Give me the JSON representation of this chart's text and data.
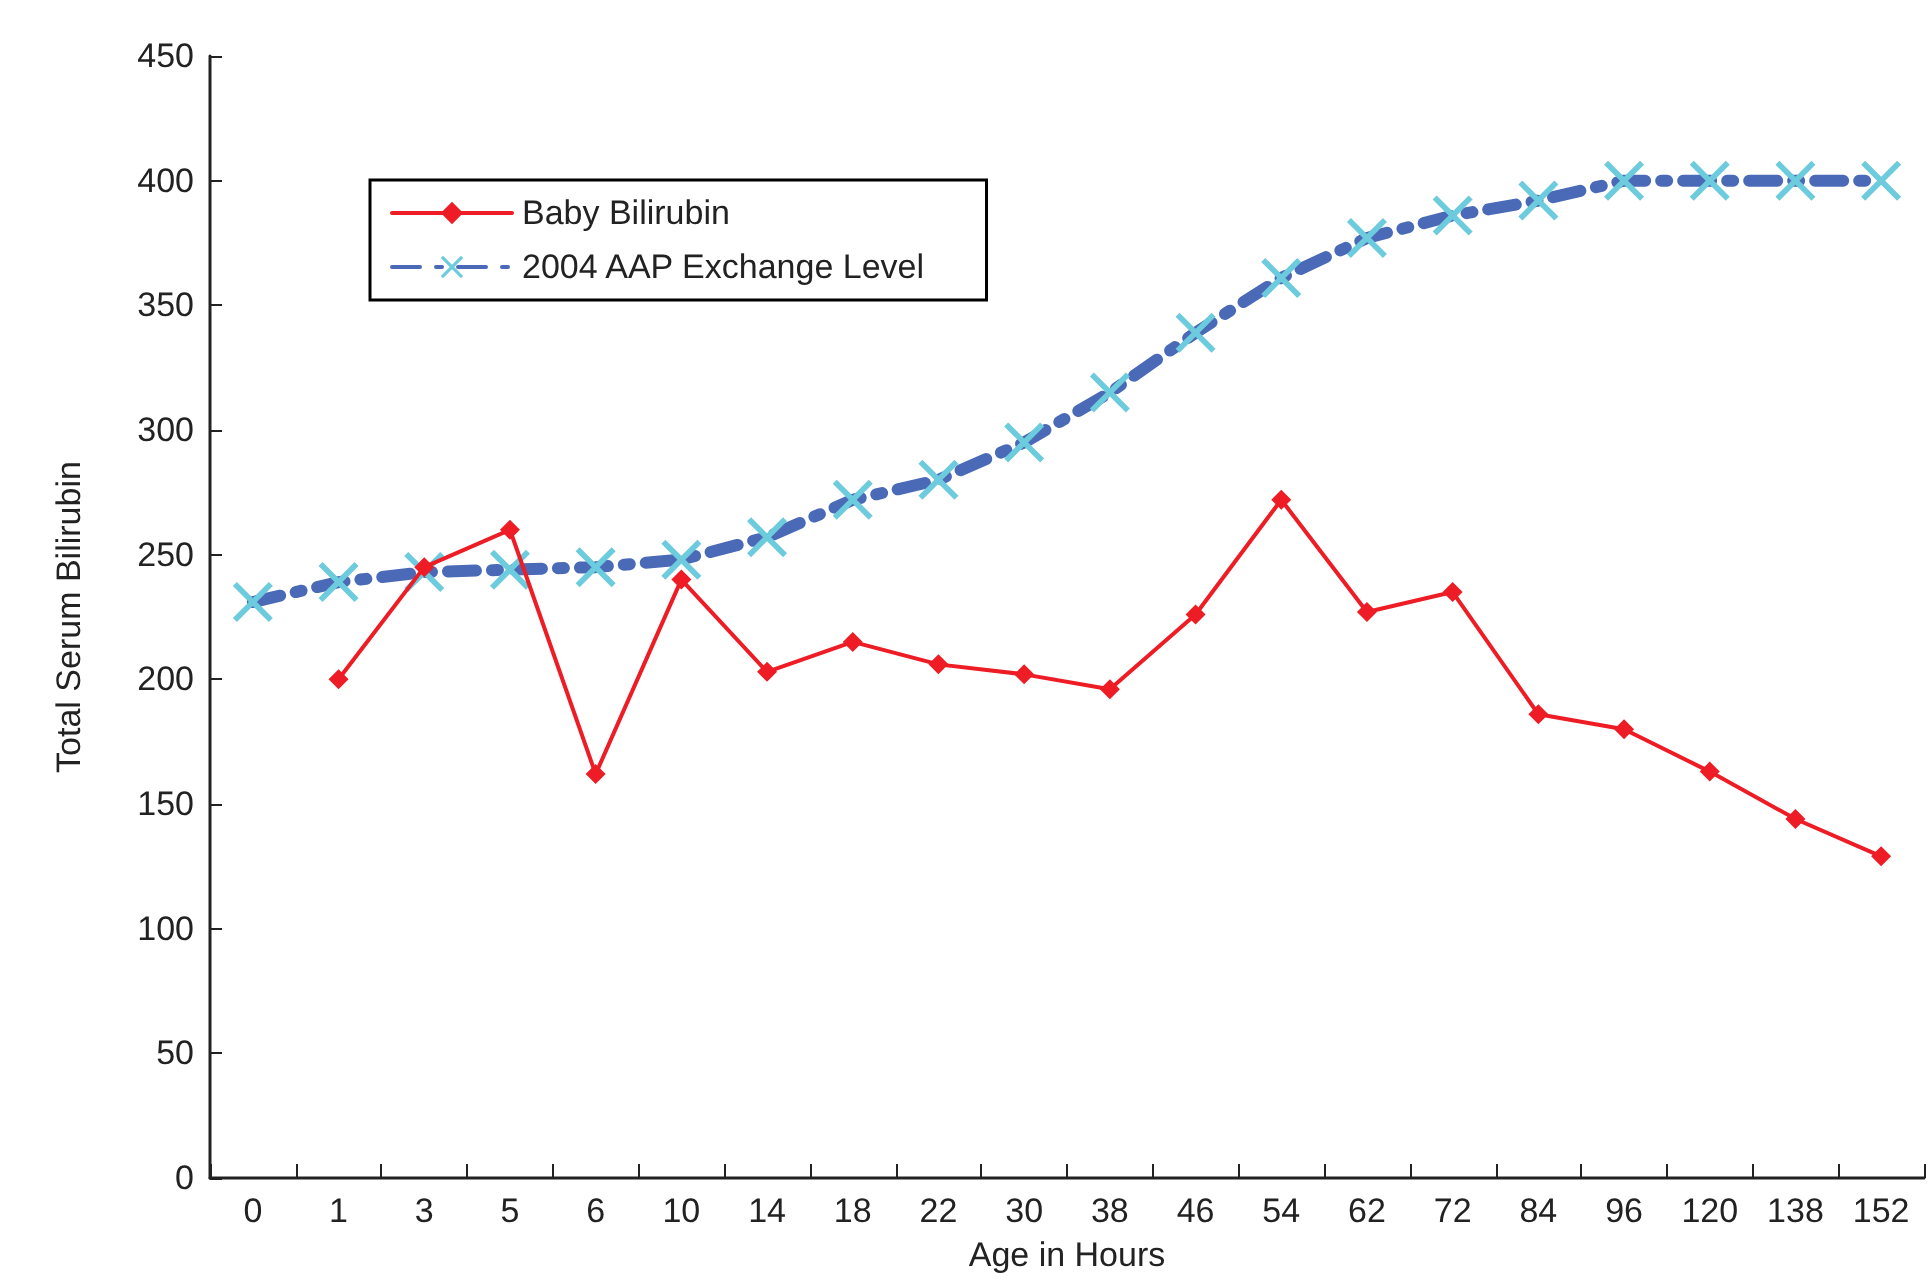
{
  "chart_data": {
    "type": "line",
    "xlabel": "Age in Hours",
    "ylabel": "Total Serum Bilirubin",
    "categories": [
      "0",
      "1",
      "3",
      "5",
      "6",
      "10",
      "14",
      "18",
      "22",
      "30",
      "38",
      "46",
      "54",
      "62",
      "72",
      "84",
      "96",
      "120",
      "138",
      "152"
    ],
    "series": [
      {
        "name": "Baby Bilirubin",
        "color": "#ee1c25",
        "marker": "diamond",
        "line_style": "solid",
        "values": [
          null,
          200,
          245,
          260,
          162,
          240,
          203,
          215,
          206,
          202,
          196,
          226,
          272,
          227,
          235,
          186,
          180,
          163,
          144,
          129
        ]
      },
      {
        "name": "2004 AAP Exchange Level",
        "color": "#4a6ab8",
        "marker": "cross",
        "line_style": "dashed",
        "values": [
          231,
          239,
          243,
          244,
          245,
          248,
          257,
          272,
          280,
          295,
          315,
          339,
          361,
          377,
          386,
          392,
          400,
          400,
          400,
          400
        ]
      }
    ],
    "ylim": [
      0,
      450
    ],
    "yticks": [
      0,
      50,
      100,
      150,
      200,
      250,
      300,
      350,
      400,
      450
    ],
    "grid": false,
    "legend": "top left"
  }
}
